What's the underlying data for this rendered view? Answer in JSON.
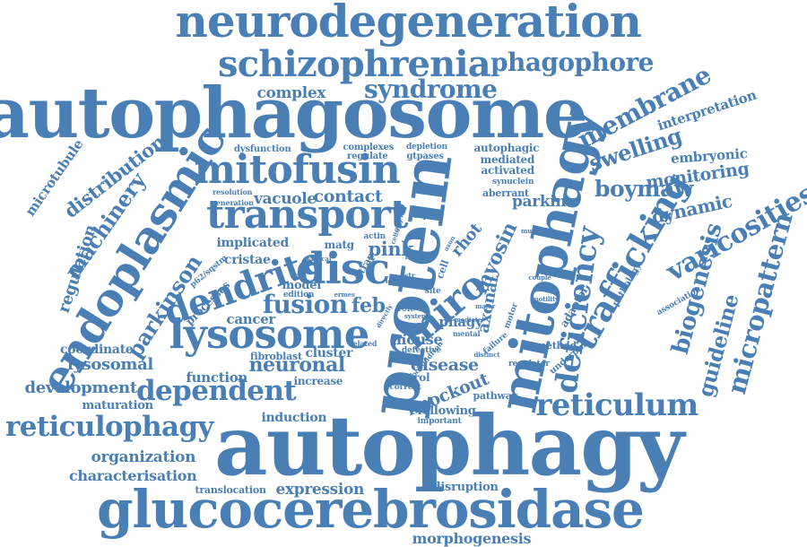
{
  "word_cloud": {
    "color": "#4a7fb5",
    "words": [
      {
        "text": "neurodegeneration"
      },
      {
        "text": "autophagosome"
      },
      {
        "text": "autophagy"
      },
      {
        "text": "glucocerebrosidase"
      },
      {
        "text": "protein"
      },
      {
        "text": "mitophagy"
      },
      {
        "text": "schizophrenia"
      },
      {
        "text": "phagophore"
      },
      {
        "text": "syndrome"
      },
      {
        "text": "complex"
      },
      {
        "text": "mitofusin"
      },
      {
        "text": "endoplasmic"
      },
      {
        "text": "transport"
      },
      {
        "text": "membrane"
      },
      {
        "text": "interpretation"
      },
      {
        "text": "swelling"
      },
      {
        "text": "embryonic"
      },
      {
        "text": "monitoring"
      },
      {
        "text": "boymaw"
      },
      {
        "text": "dynamic"
      },
      {
        "text": "varicosities"
      },
      {
        "text": "micropattern"
      },
      {
        "text": "biogenesis"
      },
      {
        "text": "guideline"
      },
      {
        "text": "trafficking"
      },
      {
        "text": "deficiency"
      },
      {
        "text": "reticulum"
      },
      {
        "text": "lysosome"
      },
      {
        "text": "dendrite"
      },
      {
        "text": "disc"
      },
      {
        "text": "miro"
      },
      {
        "text": "fusion"
      },
      {
        "text": "dependent"
      },
      {
        "text": "reticulophagy"
      },
      {
        "text": "parkinson"
      },
      {
        "text": "machinery"
      },
      {
        "text": "distribution"
      },
      {
        "text": "microtubule"
      },
      {
        "text": "regulation"
      },
      {
        "text": "vacuole"
      },
      {
        "text": "contact"
      },
      {
        "text": "dysfunction"
      },
      {
        "text": "resolution"
      },
      {
        "text": "generation"
      },
      {
        "text": "complexes"
      },
      {
        "text": "regulate"
      },
      {
        "text": "depletion"
      },
      {
        "text": "gtpases"
      },
      {
        "text": "autophagic"
      },
      {
        "text": "mediated"
      },
      {
        "text": "activated"
      },
      {
        "text": "synuclein"
      },
      {
        "text": "aberrant"
      },
      {
        "text": "parkin"
      },
      {
        "text": "myosin"
      },
      {
        "text": "rhot"
      },
      {
        "text": "pink"
      },
      {
        "text": "implicated"
      },
      {
        "text": "cristae"
      },
      {
        "text": "matg"
      },
      {
        "text": "actin"
      },
      {
        "text": "cellular"
      },
      {
        "text": "outer"
      },
      {
        "text": "report"
      },
      {
        "text": "multiple"
      },
      {
        "text": "p62/sqstm"
      },
      {
        "text": "processes"
      },
      {
        "text": "model"
      },
      {
        "text": "edition"
      },
      {
        "text": "feb"
      },
      {
        "text": "cancer"
      },
      {
        "text": "neuronal"
      },
      {
        "text": "cluster"
      },
      {
        "text": "fibroblast"
      },
      {
        "text": "related"
      },
      {
        "text": "mouse"
      },
      {
        "text": "phagy"
      },
      {
        "text": "axonal"
      },
      {
        "text": "disease"
      },
      {
        "text": "knockout"
      },
      {
        "text": "control"
      },
      {
        "text": "correct"
      },
      {
        "text": "defective"
      },
      {
        "text": "increase"
      },
      {
        "text": "function"
      },
      {
        "text": "lysosomal"
      },
      {
        "text": "coordinate"
      },
      {
        "text": "development"
      },
      {
        "text": "maturation"
      },
      {
        "text": "induction"
      },
      {
        "text": "organization"
      },
      {
        "text": "characterisation"
      },
      {
        "text": "translocation"
      },
      {
        "text": "expression"
      },
      {
        "text": "morphogenesis"
      },
      {
        "text": "disruption"
      },
      {
        "text": "following"
      },
      {
        "text": "important"
      },
      {
        "text": "pathway"
      },
      {
        "text": "regulator"
      },
      {
        "text": "method"
      },
      {
        "text": "failure"
      },
      {
        "text": "motor"
      },
      {
        "text": "distinct"
      },
      {
        "text": "adaptor"
      },
      {
        "text": "motility"
      },
      {
        "text": "underpin"
      },
      {
        "text": "pathology"
      },
      {
        "text": "association"
      },
      {
        "text": "couple"
      },
      {
        "text": "site"
      },
      {
        "text": "cell"
      },
      {
        "text": "role"
      },
      {
        "text": "system"
      },
      {
        "text": "level"
      },
      {
        "text": "mediate"
      },
      {
        "text": "major"
      },
      {
        "text": "mental"
      },
      {
        "text": "critical"
      },
      {
        "text": "ermes"
      },
      {
        "text": "mico"
      },
      {
        "text": "trap"
      },
      {
        "text": "axon"
      },
      {
        "text": "disorder"
      },
      {
        "text": "str"
      },
      {
        "text": "done"
      },
      {
        "text": "directly"
      },
      {
        "text": "mitochondrion"
      }
    ]
  }
}
